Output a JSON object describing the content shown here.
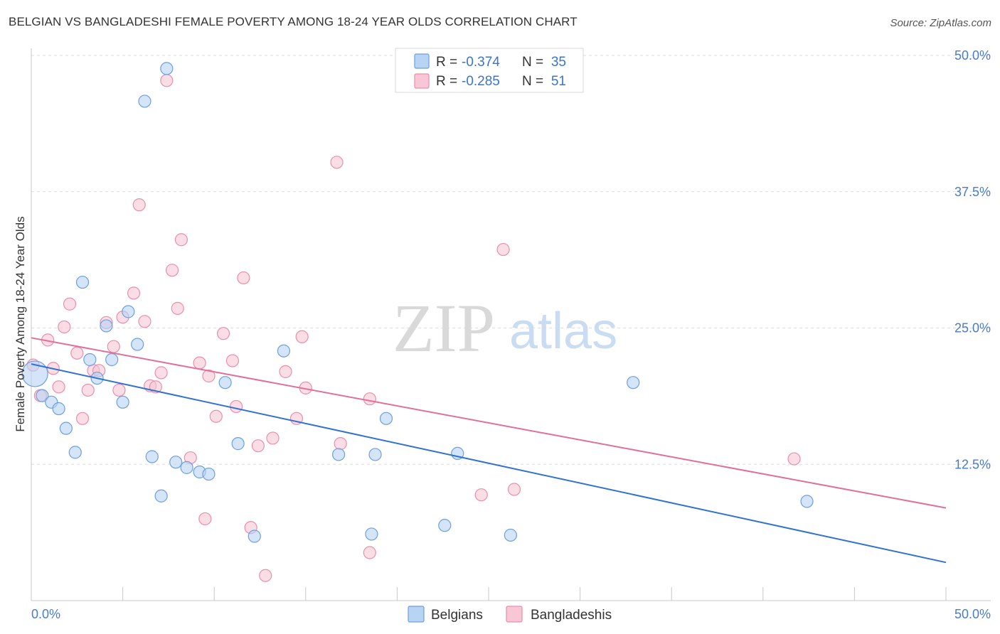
{
  "title": "BELGIAN VS BANGLADESHI FEMALE POVERTY AMONG 18-24 YEAR OLDS CORRELATION CHART",
  "source": "Source: ZipAtlas.com",
  "watermark": {
    "zip": "ZIP",
    "atlas": "atlas"
  },
  "colors": {
    "belgians_fill": "#b8d4f5",
    "belgians_stroke": "#6e9fdc",
    "belgians_line": "#2f72d0",
    "bangladeshis_fill": "#f8c6d5",
    "bangladeshis_stroke": "#e890ab",
    "bangladeshis_line": "#e0709a",
    "axis_label": "#4a7cc4",
    "grid": "#dedede"
  },
  "legend": {
    "r_label": "R =",
    "n_label": "N =",
    "rows": [
      {
        "series": "belgians",
        "r": "-0.374",
        "n": "35"
      },
      {
        "series": "bangladeshis",
        "r": "-0.285",
        "n": "51"
      }
    ]
  },
  "chart_data": {
    "type": "scatter",
    "title": "BELGIAN VS BANGLADESHI FEMALE POVERTY AMONG 18-24 YEAR OLDS CORRELATION CHART",
    "xlabel": "",
    "ylabel": "Female Poverty Among 18-24 Year Olds",
    "xlim": [
      0,
      50
    ],
    "ylim": [
      0,
      50
    ],
    "x_tick_labels": [
      "0.0%",
      "50.0%"
    ],
    "y_ticks": [
      12.5,
      25.0,
      37.5,
      50.0
    ],
    "y_tick_labels": [
      "12.5%",
      "25.0%",
      "37.5%",
      "50.0%"
    ],
    "grid": true,
    "legend_position": "top-center",
    "series": [
      {
        "name": "Belgians",
        "points": [
          [
            0.2,
            20.8
          ],
          [
            0.6,
            18.8
          ],
          [
            1.1,
            18.2
          ],
          [
            1.5,
            17.6
          ],
          [
            1.9,
            15.8
          ],
          [
            2.4,
            13.6
          ],
          [
            2.8,
            29.2
          ],
          [
            3.2,
            22.1
          ],
          [
            3.6,
            20.4
          ],
          [
            4.1,
            25.2
          ],
          [
            4.4,
            22.1
          ],
          [
            5.0,
            18.2
          ],
          [
            5.3,
            26.5
          ],
          [
            5.8,
            23.5
          ],
          [
            6.2,
            45.8
          ],
          [
            6.6,
            13.2
          ],
          [
            7.1,
            9.6
          ],
          [
            7.4,
            48.8
          ],
          [
            7.9,
            12.7
          ],
          [
            8.5,
            12.2
          ],
          [
            9.2,
            11.8
          ],
          [
            9.7,
            11.6
          ],
          [
            10.6,
            20.0
          ],
          [
            11.3,
            14.4
          ],
          [
            12.2,
            5.9
          ],
          [
            13.8,
            22.9
          ],
          [
            16.8,
            13.4
          ],
          [
            18.6,
            6.1
          ],
          [
            18.8,
            13.4
          ],
          [
            19.4,
            16.7
          ],
          [
            22.6,
            6.9
          ],
          [
            23.3,
            13.5
          ],
          [
            26.2,
            6.0
          ],
          [
            32.9,
            20.0
          ],
          [
            42.4,
            9.1
          ]
        ],
        "trend": {
          "x": [
            0,
            50
          ],
          "y": [
            21.7,
            3.5
          ]
        }
      },
      {
        "name": "Bangladeshis",
        "points": [
          [
            0.1,
            21.6
          ],
          [
            0.5,
            18.8
          ],
          [
            0.9,
            23.9
          ],
          [
            1.2,
            21.3
          ],
          [
            1.5,
            19.6
          ],
          [
            1.8,
            25.1
          ],
          [
            2.1,
            27.2
          ],
          [
            2.5,
            22.7
          ],
          [
            2.8,
            16.7
          ],
          [
            3.1,
            19.3
          ],
          [
            3.4,
            21.1
          ],
          [
            3.7,
            21.1
          ],
          [
            4.1,
            25.5
          ],
          [
            4.5,
            23.3
          ],
          [
            4.8,
            19.3
          ],
          [
            5.0,
            26.0
          ],
          [
            5.6,
            28.2
          ],
          [
            5.9,
            36.3
          ],
          [
            6.2,
            25.6
          ],
          [
            6.5,
            19.7
          ],
          [
            6.8,
            19.6
          ],
          [
            7.1,
            20.9
          ],
          [
            7.4,
            47.7
          ],
          [
            7.7,
            30.3
          ],
          [
            8.0,
            26.8
          ],
          [
            8.2,
            33.1
          ],
          [
            8.7,
            13.1
          ],
          [
            9.2,
            21.8
          ],
          [
            9.5,
            7.5
          ],
          [
            9.7,
            20.6
          ],
          [
            10.1,
            16.9
          ],
          [
            10.5,
            24.5
          ],
          [
            11.0,
            22.0
          ],
          [
            11.2,
            17.8
          ],
          [
            11.6,
            29.6
          ],
          [
            12.0,
            6.7
          ],
          [
            12.4,
            14.2
          ],
          [
            12.8,
            2.3
          ],
          [
            13.2,
            14.9
          ],
          [
            13.9,
            21.0
          ],
          [
            14.5,
            16.7
          ],
          [
            14.8,
            24.2
          ],
          [
            15.0,
            19.5
          ],
          [
            16.7,
            40.2
          ],
          [
            16.9,
            14.4
          ],
          [
            18.5,
            18.5
          ],
          [
            18.5,
            4.4
          ],
          [
            24.6,
            9.7
          ],
          [
            25.8,
            32.2
          ],
          [
            26.4,
            10.2
          ],
          [
            41.7,
            13.0
          ]
        ],
        "trend": {
          "x": [
            0,
            50
          ],
          "y": [
            24.1,
            8.5
          ]
        }
      }
    ]
  },
  "bottom_legend": [
    "Belgians",
    "Bangladeshis"
  ]
}
